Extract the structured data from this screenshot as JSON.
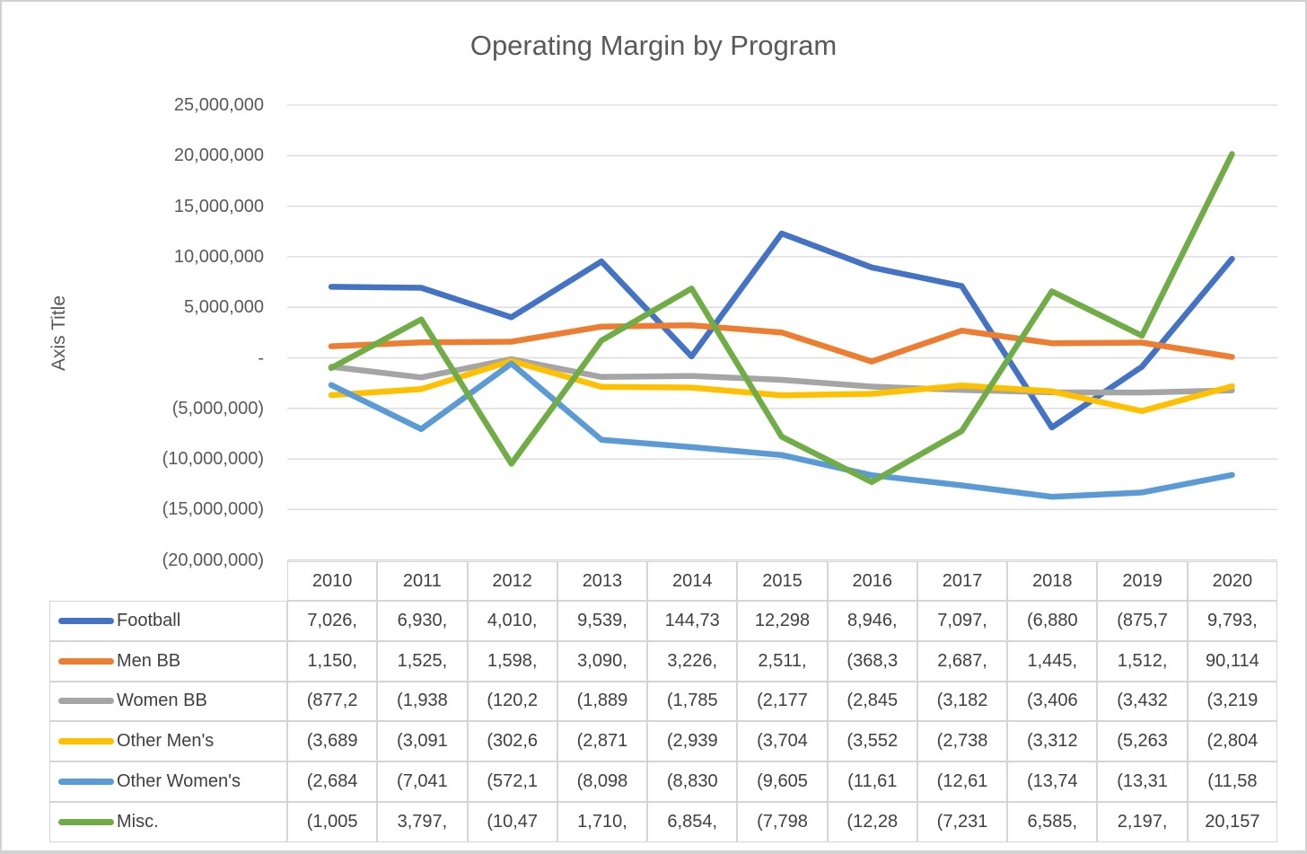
{
  "chart_data": {
    "type": "line",
    "title": "Operating Margin by Program",
    "ylabel": "Axis Title",
    "xlabel": "",
    "categories": [
      "2010",
      "2011",
      "2012",
      "2013",
      "2014",
      "2015",
      "2016",
      "2017",
      "2018",
      "2019",
      "2020"
    ],
    "ylim": [
      -20000000,
      25000000
    ],
    "ytick_interval": 5000000,
    "ytick_labels": [
      "25,000,000",
      "20,000,000",
      "15,000,000",
      "10,000,000",
      "5,000,000",
      "-",
      "(5,000,000)",
      "(10,000,000)",
      "(15,000,000)",
      "(20,000,000)"
    ],
    "ytick_values": [
      25000000,
      20000000,
      15000000,
      10000000,
      5000000,
      0,
      -5000000,
      -10000000,
      -15000000,
      -20000000
    ],
    "grid": true,
    "legend_position": "table-left-column",
    "gridline_color": "#d9d9d9",
    "series": [
      {
        "name": "Football",
        "color": "#4472C4",
        "values": [
          7026000,
          6930000,
          4010000,
          9539000,
          144730,
          12298000,
          8946000,
          7097000,
          -6880000,
          -875700,
          9793000
        ],
        "display": [
          "7,026,",
          "6,930,",
          "4,010,",
          "9,539,",
          "144,73",
          "12,298",
          "8,946,",
          "7,097,",
          "(6,880",
          "(875,7",
          "9,793,"
        ]
      },
      {
        "name": "Men BB",
        "color": "#ED7D31",
        "values": [
          1150000,
          1525000,
          1598000,
          3090000,
          3226000,
          2511000,
          -368300,
          2687000,
          1445000,
          1512000,
          90114
        ],
        "display": [
          "1,150,",
          "1,525,",
          "1,598,",
          "3,090,",
          "3,226,",
          "2,511,",
          "(368,3",
          "2,687,",
          "1,445,",
          "1,512,",
          "90,114"
        ]
      },
      {
        "name": "Women BB",
        "color": "#A5A5A5",
        "values": [
          -877200,
          -1938000,
          -120200,
          -1889000,
          -1785000,
          -2177000,
          -2845000,
          -3182000,
          -3406000,
          -3432000,
          -3219000
        ],
        "display": [
          "(877,2",
          "(1,938",
          "(120,2",
          "(1,889",
          "(1,785",
          "(2,177",
          "(2,845",
          "(3,182",
          "(3,406",
          "(3,432",
          "(3,219"
        ]
      },
      {
        "name": "Other Men's",
        "color": "#FFC000",
        "values": [
          -3689000,
          -3091000,
          -302600,
          -2871000,
          -2939000,
          -3704000,
          -3552000,
          -2738000,
          -3312000,
          -5263000,
          -2804000
        ],
        "display": [
          "(3,689",
          "(3,091",
          "(302,6",
          "(2,871",
          "(2,939",
          "(3,704",
          "(3,552",
          "(2,738",
          "(3,312",
          "(5,263",
          "(2,804"
        ]
      },
      {
        "name": "Other Women's",
        "color": "#5B9BD5",
        "values": [
          -2684000,
          -7041000,
          -572100,
          -8098000,
          -8830000,
          -9605000,
          -11610000,
          -12610000,
          -13740000,
          -13310000,
          -11580000
        ],
        "display": [
          "(2,684",
          "(7,041",
          "(572,1",
          "(8,098",
          "(8,830",
          "(9,605",
          "(11,61",
          "(12,61",
          "(13,74",
          "(13,31",
          "(11,58"
        ]
      },
      {
        "name": "Misc.",
        "color": "#70AD47",
        "values": [
          -1005000,
          3797000,
          -10470000,
          1710000,
          6854000,
          -7798000,
          -12280000,
          -7231000,
          6585000,
          2197000,
          20157000
        ],
        "display": [
          "(1,005",
          "3,797,",
          "(10,47",
          "1,710,",
          "6,854,",
          "(7,798",
          "(12,28",
          "(7,231",
          "6,585,",
          "2,197,",
          "20,157"
        ]
      }
    ]
  }
}
